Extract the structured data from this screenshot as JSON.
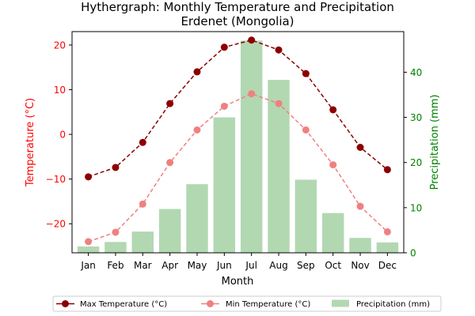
{
  "chart_data": {
    "type": "bar",
    "title": "Hythergraph: Monthly Temperature and Precipitation",
    "subtitle": "Erdenet (Mongolia)",
    "xlabel": "Month",
    "ylabel_left": "Temperature (°C)",
    "ylabel_right": "Precipitation (mm)",
    "categories": [
      "Jan",
      "Feb",
      "Mar",
      "Apr",
      "May",
      "Jun",
      "Jul",
      "Aug",
      "Sep",
      "Oct",
      "Nov",
      "Dec"
    ],
    "ylim_left": [
      -26.5,
      23
    ],
    "ylim_right": [
      0,
      49
    ],
    "yticks_left": [
      -20,
      -10,
      0,
      10,
      20
    ],
    "yticks_right": [
      0,
      10,
      20,
      30,
      40
    ],
    "series": [
      {
        "name": "Max Temperature (°C)",
        "kind": "line",
        "axis": "left",
        "color": "#8b0000",
        "values": [
          -9.5,
          -7.4,
          -1.8,
          6.9,
          14.0,
          19.5,
          21.1,
          18.9,
          13.6,
          5.5,
          -2.9,
          -7.9
        ]
      },
      {
        "name": "Min Temperature (°C)",
        "kind": "line",
        "axis": "left",
        "color": "#f08080",
        "values": [
          -24.0,
          -21.9,
          -15.6,
          -6.3,
          1.0,
          6.3,
          9.1,
          6.9,
          1.0,
          -6.8,
          -16.1,
          -21.8
        ]
      },
      {
        "name": "Precipitation (mm)",
        "kind": "bar",
        "axis": "right",
        "color": "#b2d8b2",
        "values": [
          1.4,
          2.4,
          4.7,
          9.7,
          15.2,
          30.0,
          47.0,
          38.3,
          16.2,
          8.8,
          3.3,
          2.3
        ]
      }
    ],
    "legend_position": "bottom-center",
    "colors": {
      "left_axis": "#ff0000",
      "right_axis": "#008000",
      "axes": "#000000"
    }
  }
}
